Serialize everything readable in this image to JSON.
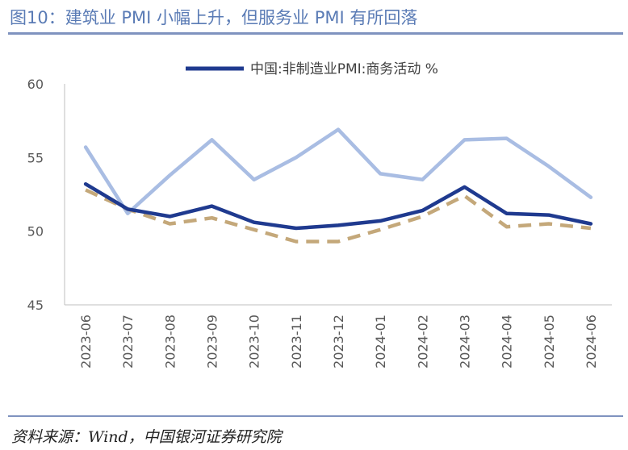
{
  "figure": {
    "title": "图10：建筑业 PMI 小幅上升，但服务业 PMI 有所回落",
    "source": "资料来源：Wind，中国银河证券研究院"
  },
  "chart_data": {
    "type": "line",
    "categories": [
      "2023-06",
      "2023-07",
      "2023-08",
      "2023-09",
      "2023-10",
      "2023-11",
      "2023-12",
      "2024-01",
      "2024-02",
      "2024-03",
      "2024-04",
      "2024-05",
      "2024-06"
    ],
    "series": [
      {
        "name": "中国:非制造业PMI:商务活动 %",
        "color": "#1f3a8f",
        "style": "solid",
        "values": [
          53.2,
          51.5,
          51.0,
          51.7,
          50.6,
          50.2,
          50.4,
          50.7,
          51.4,
          53.0,
          51.2,
          51.1,
          50.5
        ]
      },
      {
        "name": "",
        "color": "#a9bde3",
        "style": "solid",
        "values": [
          55.7,
          51.2,
          53.8,
          56.2,
          53.5,
          55.0,
          56.9,
          53.9,
          53.5,
          56.2,
          56.3,
          54.4,
          52.3
        ]
      },
      {
        "name": "",
        "color": "#c4a87a",
        "style": "dashed",
        "values": [
          52.8,
          51.5,
          50.5,
          50.9,
          50.1,
          49.3,
          49.3,
          50.1,
          51.0,
          52.4,
          50.3,
          50.5,
          50.2
        ]
      }
    ],
    "ylim": [
      45,
      60
    ],
    "yticks": [
      "45",
      "50",
      "55",
      "60"
    ],
    "grid": false,
    "legend": "top"
  }
}
